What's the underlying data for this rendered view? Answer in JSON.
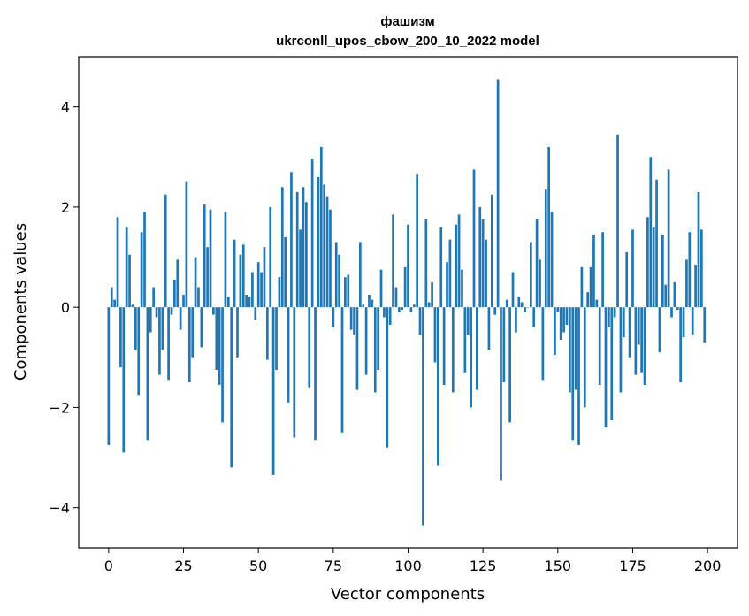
{
  "chart_data": {
    "type": "bar",
    "title": "фашизм",
    "subtitle": "ukrconll_upos_cbow_200_10_2022 model",
    "xlabel": "Vector components",
    "ylabel": "Components values",
    "xlim": [
      -10,
      210
    ],
    "ylim": [
      -4.8,
      5.0
    ],
    "xticks": [
      0,
      25,
      50,
      75,
      100,
      125,
      150,
      175,
      200
    ],
    "yticks": [
      -4,
      -2,
      0,
      2,
      4
    ],
    "ytick_labels": [
      "−4",
      "−2",
      "0",
      "2",
      "4"
    ],
    "grid": false,
    "bar_color": "#1f77b4",
    "x": [
      0,
      1,
      2,
      3,
      4,
      5,
      6,
      7,
      8,
      9,
      10,
      11,
      12,
      13,
      14,
      15,
      16,
      17,
      18,
      19,
      20,
      21,
      22,
      23,
      24,
      25,
      26,
      27,
      28,
      29,
      30,
      31,
      32,
      33,
      34,
      35,
      36,
      37,
      38,
      39,
      40,
      41,
      42,
      43,
      44,
      45,
      46,
      47,
      48,
      49,
      50,
      51,
      52,
      53,
      54,
      55,
      56,
      57,
      58,
      59,
      60,
      61,
      62,
      63,
      64,
      65,
      66,
      67,
      68,
      69,
      70,
      71,
      72,
      73,
      74,
      75,
      76,
      77,
      78,
      79,
      80,
      81,
      82,
      83,
      84,
      85,
      86,
      87,
      88,
      89,
      90,
      91,
      92,
      93,
      94,
      95,
      96,
      97,
      98,
      99,
      100,
      101,
      102,
      103,
      104,
      105,
      106,
      107,
      108,
      109,
      110,
      111,
      112,
      113,
      114,
      115,
      116,
      117,
      118,
      119,
      120,
      121,
      122,
      123,
      124,
      125,
      126,
      127,
      128,
      129,
      130,
      131,
      132,
      133,
      134,
      135,
      136,
      137,
      138,
      139,
      140,
      141,
      142,
      143,
      144,
      145,
      146,
      147,
      148,
      149,
      150,
      151,
      152,
      153,
      154,
      155,
      156,
      157,
      158,
      159,
      160,
      161,
      162,
      163,
      164,
      165,
      166,
      167,
      168,
      169,
      170,
      171,
      172,
      173,
      174,
      175,
      176,
      177,
      178,
      179,
      180,
      181,
      182,
      183,
      184,
      185,
      186,
      187,
      188,
      189,
      190,
      191,
      192,
      193,
      194,
      195,
      196,
      197,
      198,
      199
    ],
    "values": [
      -2.75,
      0.4,
      0.15,
      1.8,
      -1.2,
      -2.9,
      1.6,
      1.05,
      0.05,
      -0.85,
      -1.75,
      1.5,
      1.9,
      -2.65,
      -0.5,
      0.4,
      -0.2,
      -1.35,
      -0.85,
      2.25,
      -1.45,
      -0.15,
      0.55,
      0.95,
      -0.45,
      0.25,
      2.5,
      -1.5,
      -1.0,
      1.0,
      0.4,
      -0.8,
      2.05,
      1.2,
      1.95,
      -0.15,
      -1.25,
      -1.55,
      -2.3,
      1.9,
      0.2,
      -3.2,
      1.35,
      -1.0,
      1.05,
      1.25,
      0.25,
      0.2,
      0.7,
      -0.25,
      0.9,
      0.7,
      1.2,
      -1.05,
      2.0,
      -3.35,
      -1.25,
      0.6,
      2.4,
      1.4,
      -1.9,
      2.7,
      -2.6,
      2.3,
      1.55,
      2.4,
      2.1,
      -1.6,
      2.95,
      -2.65,
      2.6,
      3.2,
      2.45,
      2.2,
      1.95,
      -0.4,
      1.3,
      1.05,
      -2.5,
      0.6,
      0.65,
      -0.45,
      -0.55,
      -1.65,
      1.3,
      0.05,
      -1.35,
      0.25,
      0.15,
      -1.7,
      -1.25,
      0.75,
      -0.2,
      -2.8,
      -0.35,
      1.85,
      0.4,
      -0.1,
      -0.05,
      0.8,
      1.65,
      -0.1,
      0.05,
      2.65,
      -0.55,
      -4.35,
      1.75,
      0.1,
      0.5,
      -1.1,
      -3.15,
      1.6,
      -1.55,
      0.9,
      1.35,
      -1.7,
      1.65,
      1.85,
      0.75,
      -1.3,
      -0.55,
      -2.0,
      2.75,
      -1.65,
      2.0,
      1.75,
      1.35,
      -0.85,
      2.25,
      -0.15,
      4.55,
      -3.45,
      -1.5,
      0.15,
      -2.3,
      0.7,
      -0.5,
      0.2,
      0.1,
      -0.1,
      0.0,
      1.3,
      -0.4,
      1.75,
      0.95,
      -1.45,
      2.35,
      3.2,
      1.9,
      -0.95,
      -0.1,
      -0.65,
      -0.5,
      -0.35,
      -1.7,
      -2.65,
      -1.65,
      -2.75,
      0.8,
      -2.0,
      0.3,
      0.8,
      1.45,
      0.15,
      -1.55,
      1.5,
      -2.4,
      -0.4,
      -2.25,
      -0.2,
      3.45,
      -1.7,
      -0.6,
      1.1,
      -1.0,
      1.55,
      -1.35,
      -0.75,
      -1.3,
      -1.55,
      1.8,
      3.0,
      1.6,
      2.55,
      -0.9,
      1.45,
      0.45,
      2.75,
      -0.2,
      0.5,
      -0.05,
      -1.5,
      -0.6,
      0.95,
      1.5,
      -0.55,
      0.85,
      2.3,
      1.55,
      -0.7
    ]
  }
}
